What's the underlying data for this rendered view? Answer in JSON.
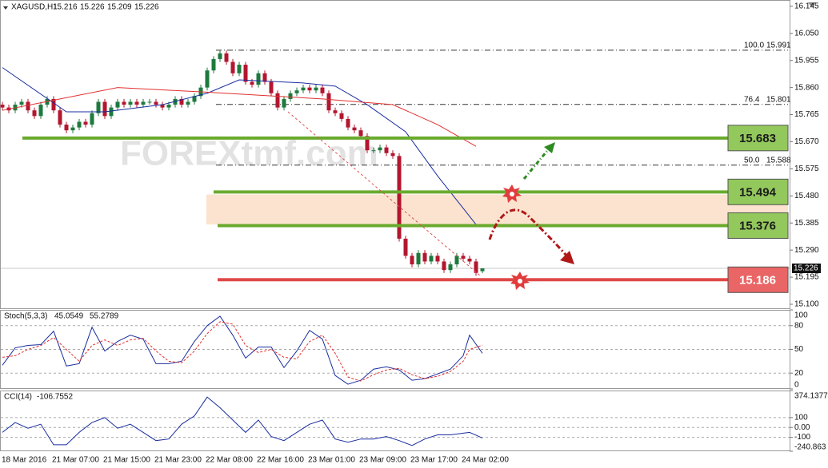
{
  "chart_data": [
    {
      "type": "candlestick",
      "title": "XAGUSD,H1",
      "header_values": [
        15.216,
        15.226,
        15.209,
        15.226
      ],
      "categories": [
        "18 Mar 2016",
        null,
        null,
        null,
        null,
        null,
        null,
        null,
        "21 Mar 07:00",
        null,
        null,
        null,
        null,
        null,
        null,
        null,
        "21 Mar 15:00",
        null,
        null,
        null,
        null,
        null,
        null,
        null,
        "21 Mar 23:00",
        null,
        null,
        null,
        null,
        null,
        null,
        null,
        "22 Mar 08:00",
        null,
        null,
        null,
        null,
        null,
        null,
        null,
        "22 Mar 16:00",
        null,
        null,
        null,
        null,
        null,
        null,
        null,
        "23 Mar 01:00",
        null,
        null,
        null,
        null,
        null,
        null,
        null,
        "23 Mar 09:00",
        null,
        null,
        null,
        null,
        null,
        null,
        null,
        "23 Mar 17:00",
        null,
        null,
        null,
        null,
        null,
        null,
        null,
        "24 Mar 02:00",
        null,
        null,
        null
      ],
      "open": [
        15.8,
        15.79,
        15.78,
        15.8,
        15.81,
        15.78,
        15.76,
        15.8,
        15.82,
        15.78,
        15.73,
        15.71,
        15.72,
        15.74,
        15.73,
        15.77,
        15.81,
        15.76,
        15.79,
        15.81,
        15.8,
        15.81,
        15.8,
        15.81,
        15.81,
        15.8,
        15.79,
        15.8,
        15.82,
        15.8,
        15.81,
        15.83,
        15.86,
        15.92,
        15.96,
        15.98,
        15.95,
        15.91,
        15.94,
        15.88,
        15.87,
        15.91,
        15.88,
        15.84,
        15.79,
        15.82,
        15.84,
        15.85,
        15.86,
        15.85,
        15.86,
        15.84,
        15.78,
        15.77,
        15.75,
        15.72,
        15.71,
        15.69,
        15.64,
        15.64,
        15.65,
        15.63,
        15.62,
        15.33,
        15.27,
        15.24,
        15.28,
        15.25,
        15.27,
        15.25,
        15.22,
        15.24,
        15.27,
        15.26,
        15.25,
        15.216
      ],
      "high": [
        15.81,
        15.8,
        15.81,
        15.82,
        15.82,
        15.79,
        15.81,
        15.83,
        15.83,
        15.79,
        15.74,
        15.73,
        15.75,
        15.75,
        15.78,
        15.82,
        15.82,
        15.8,
        15.82,
        15.82,
        15.82,
        15.82,
        15.82,
        15.82,
        15.82,
        15.81,
        15.81,
        15.83,
        15.83,
        15.82,
        15.84,
        15.87,
        15.93,
        15.97,
        15.99,
        15.99,
        15.96,
        15.95,
        15.95,
        15.89,
        15.92,
        15.92,
        15.89,
        15.85,
        15.83,
        15.85,
        15.86,
        15.87,
        15.87,
        15.87,
        15.87,
        15.85,
        15.79,
        15.78,
        15.76,
        15.73,
        15.72,
        15.7,
        15.65,
        15.66,
        15.66,
        15.64,
        15.63,
        15.34,
        15.28,
        15.29,
        15.29,
        15.28,
        15.28,
        15.26,
        15.25,
        15.28,
        15.28,
        15.27,
        15.26,
        15.226
      ],
      "low": [
        15.78,
        15.77,
        15.77,
        15.79,
        15.77,
        15.75,
        15.75,
        15.79,
        15.77,
        15.72,
        15.7,
        15.7,
        15.71,
        15.72,
        15.72,
        15.76,
        15.75,
        15.75,
        15.78,
        15.79,
        15.79,
        15.79,
        15.79,
        15.8,
        15.79,
        15.78,
        15.78,
        15.79,
        15.79,
        15.79,
        15.8,
        15.82,
        15.85,
        15.91,
        15.95,
        15.94,
        15.9,
        15.9,
        15.87,
        15.86,
        15.86,
        15.87,
        15.83,
        15.78,
        15.78,
        15.81,
        15.83,
        15.84,
        15.84,
        15.84,
        15.83,
        15.77,
        15.76,
        15.74,
        15.71,
        15.7,
        15.68,
        15.63,
        15.63,
        15.63,
        15.62,
        15.61,
        15.32,
        15.26,
        15.23,
        15.23,
        15.24,
        15.24,
        15.24,
        15.21,
        15.21,
        15.23,
        15.25,
        15.24,
        15.2,
        15.209
      ],
      "close": [
        15.79,
        15.78,
        15.8,
        15.81,
        15.78,
        15.76,
        15.8,
        15.82,
        15.78,
        15.73,
        15.71,
        15.72,
        15.74,
        15.73,
        15.77,
        15.81,
        15.76,
        15.79,
        15.81,
        15.8,
        15.81,
        15.8,
        15.81,
        15.81,
        15.8,
        15.79,
        15.8,
        15.82,
        15.8,
        15.81,
        15.83,
        15.86,
        15.92,
        15.96,
        15.98,
        15.95,
        15.91,
        15.94,
        15.88,
        15.87,
        15.91,
        15.88,
        15.84,
        15.79,
        15.82,
        15.84,
        15.85,
        15.86,
        15.85,
        15.86,
        15.84,
        15.78,
        15.77,
        15.75,
        15.72,
        15.71,
        15.69,
        15.64,
        15.64,
        15.65,
        15.63,
        15.62,
        15.33,
        15.27,
        15.24,
        15.28,
        15.25,
        15.27,
        15.25,
        15.22,
        15.24,
        15.27,
        15.26,
        15.25,
        15.21,
        15.226
      ],
      "up_color": "#1d7a3c",
      "down_color": "#b3162e",
      "ylim": [
        15.086,
        16.167
      ],
      "yticks": [
        16.145,
        {
          "value": 16.05,
          "label": "16.050"
        },
        15.955,
        {
          "value": 15.86,
          "label": "15.860"
        },
        15.765,
        {
          "value": 15.67,
          "label": "15.670"
        },
        15.575,
        {
          "value": 15.48,
          "label": "15.480"
        },
        15.385,
        {
          "value": 15.29,
          "label": "15.290"
        },
        15.195,
        {
          "value": 15.1,
          "label": "15.100"
        }
      ],
      "moving_averages": [
        {
          "color": "#1a2ea0",
          "x": [
            0,
            10,
            16,
            25,
            32,
            37,
            47,
            52,
            57,
            63,
            68,
            74
          ],
          "values": [
            15.93,
            15.775,
            15.775,
            15.8,
            15.84,
            15.887,
            15.876,
            15.865,
            15.8,
            15.705,
            15.55,
            15.38
          ]
        },
        {
          "color": "#e03030",
          "x": [
            0,
            18,
            31,
            50,
            61,
            68,
            74
          ],
          "values": [
            15.78,
            15.86,
            15.845,
            15.82,
            15.8,
            15.73,
            15.654
          ]
        }
      ],
      "zone": [
        15.38,
        15.485
      ],
      "zone_color": "#fbe3cf",
      "levels": [
        {
          "value": 15.683,
          "color": "#6aaa2e",
          "fill": "#93c85c",
          "text_color": "#1b1b1b"
        },
        {
          "value": 15.494,
          "color": "#6aaa2e",
          "fill": "#93c85c",
          "text_color": "#1b1b1b"
        },
        {
          "value": 15.376,
          "color": "#6aaa2e",
          "fill": "#93c85c",
          "text_color": "#1b1b1b"
        },
        {
          "value": 15.186,
          "color": "#e04848",
          "fill": "#ea6565",
          "text_color": "#ffffff"
        }
      ],
      "fib_levels": [
        {
          "level": {
            "value": 100,
            "label": "100.0"
          },
          "price": 15.991
        },
        {
          "level": 76.4,
          "price": 15.801
        },
        {
          "level": {
            "value": 50,
            "label": "50.0"
          },
          "price": 15.588
        }
      ],
      "current_price": 15.226,
      "watermark": "FOREXtmf.com"
    },
    {
      "type": "line",
      "title": "Stoch(5,3,3)",
      "header_values": [
        45.0549,
        55.2789
      ],
      "x": [
        0,
        2,
        4,
        6,
        8,
        10,
        12,
        14,
        16,
        18,
        20,
        22,
        24,
        26,
        28,
        30,
        32,
        34,
        36,
        38,
        40,
        42,
        44,
        46,
        48,
        50,
        52,
        54,
        56,
        58,
        60,
        62,
        64,
        66,
        68,
        70,
        72,
        73,
        75
      ],
      "series": [
        {
          "color": "#1a2ea0",
          "values": [
            30,
            52,
            55,
            56,
            73,
            29,
            32,
            78,
            48,
            60,
            68,
            63,
            32,
            32,
            35,
            60,
            80,
            92,
            68,
            39,
            53,
            53,
            27,
            48,
            74,
            63,
            17,
            6,
            11,
            25,
            28,
            24,
            11,
            13,
            19,
            25,
            42,
            68,
            45.0549
          ]
        },
        {
          "color": "#e03030",
          "dashed": true,
          "values": [
            40,
            42,
            50,
            55,
            65,
            50,
            35,
            55,
            62,
            55,
            62,
            64,
            48,
            35,
            33,
            48,
            70,
            85,
            82,
            55,
            46,
            50,
            40,
            38,
            60,
            68,
            45,
            15,
            10,
            18,
            24,
            26,
            18,
            13,
            16,
            22,
            35,
            50,
            55.2789
          ]
        }
      ],
      "ylim": [
        0,
        100
      ],
      "yticks": [
        100,
        80,
        50,
        20,
        0
      ],
      "grid": true
    },
    {
      "type": "line",
      "title": "CCI(14)",
      "header_values": [
        -106.7552
      ],
      "x": [
        0,
        2,
        4,
        6,
        8,
        10,
        12,
        14,
        16,
        18,
        20,
        22,
        24,
        26,
        28,
        30,
        32,
        34,
        36,
        38,
        40,
        42,
        44,
        46,
        48,
        50,
        52,
        54,
        56,
        58,
        60,
        62,
        64,
        66,
        68,
        70,
        72,
        73,
        75
      ],
      "series": [
        {
          "color": "#1a2ea0",
          "values": [
            -50,
            50,
            -8,
            33,
            -175,
            -175,
            -50,
            50,
            100,
            -8,
            33,
            -50,
            -133,
            -117,
            33,
            117,
            308,
            200,
            75,
            -50,
            75,
            -92,
            -133,
            -50,
            33,
            75,
            -117,
            -150,
            -117,
            -117,
            -92,
            -133,
            -183,
            -117,
            -75,
            -75,
            -58,
            -50,
            -106.7552
          ]
        }
      ],
      "ylim": [
        -240.863,
        374.1377
      ],
      "yticks": [
        374.1377,
        100,
        {
          "value": 0,
          "label": "0.00"
        },
        -100,
        -240.863
      ],
      "grid": true
    }
  ]
}
